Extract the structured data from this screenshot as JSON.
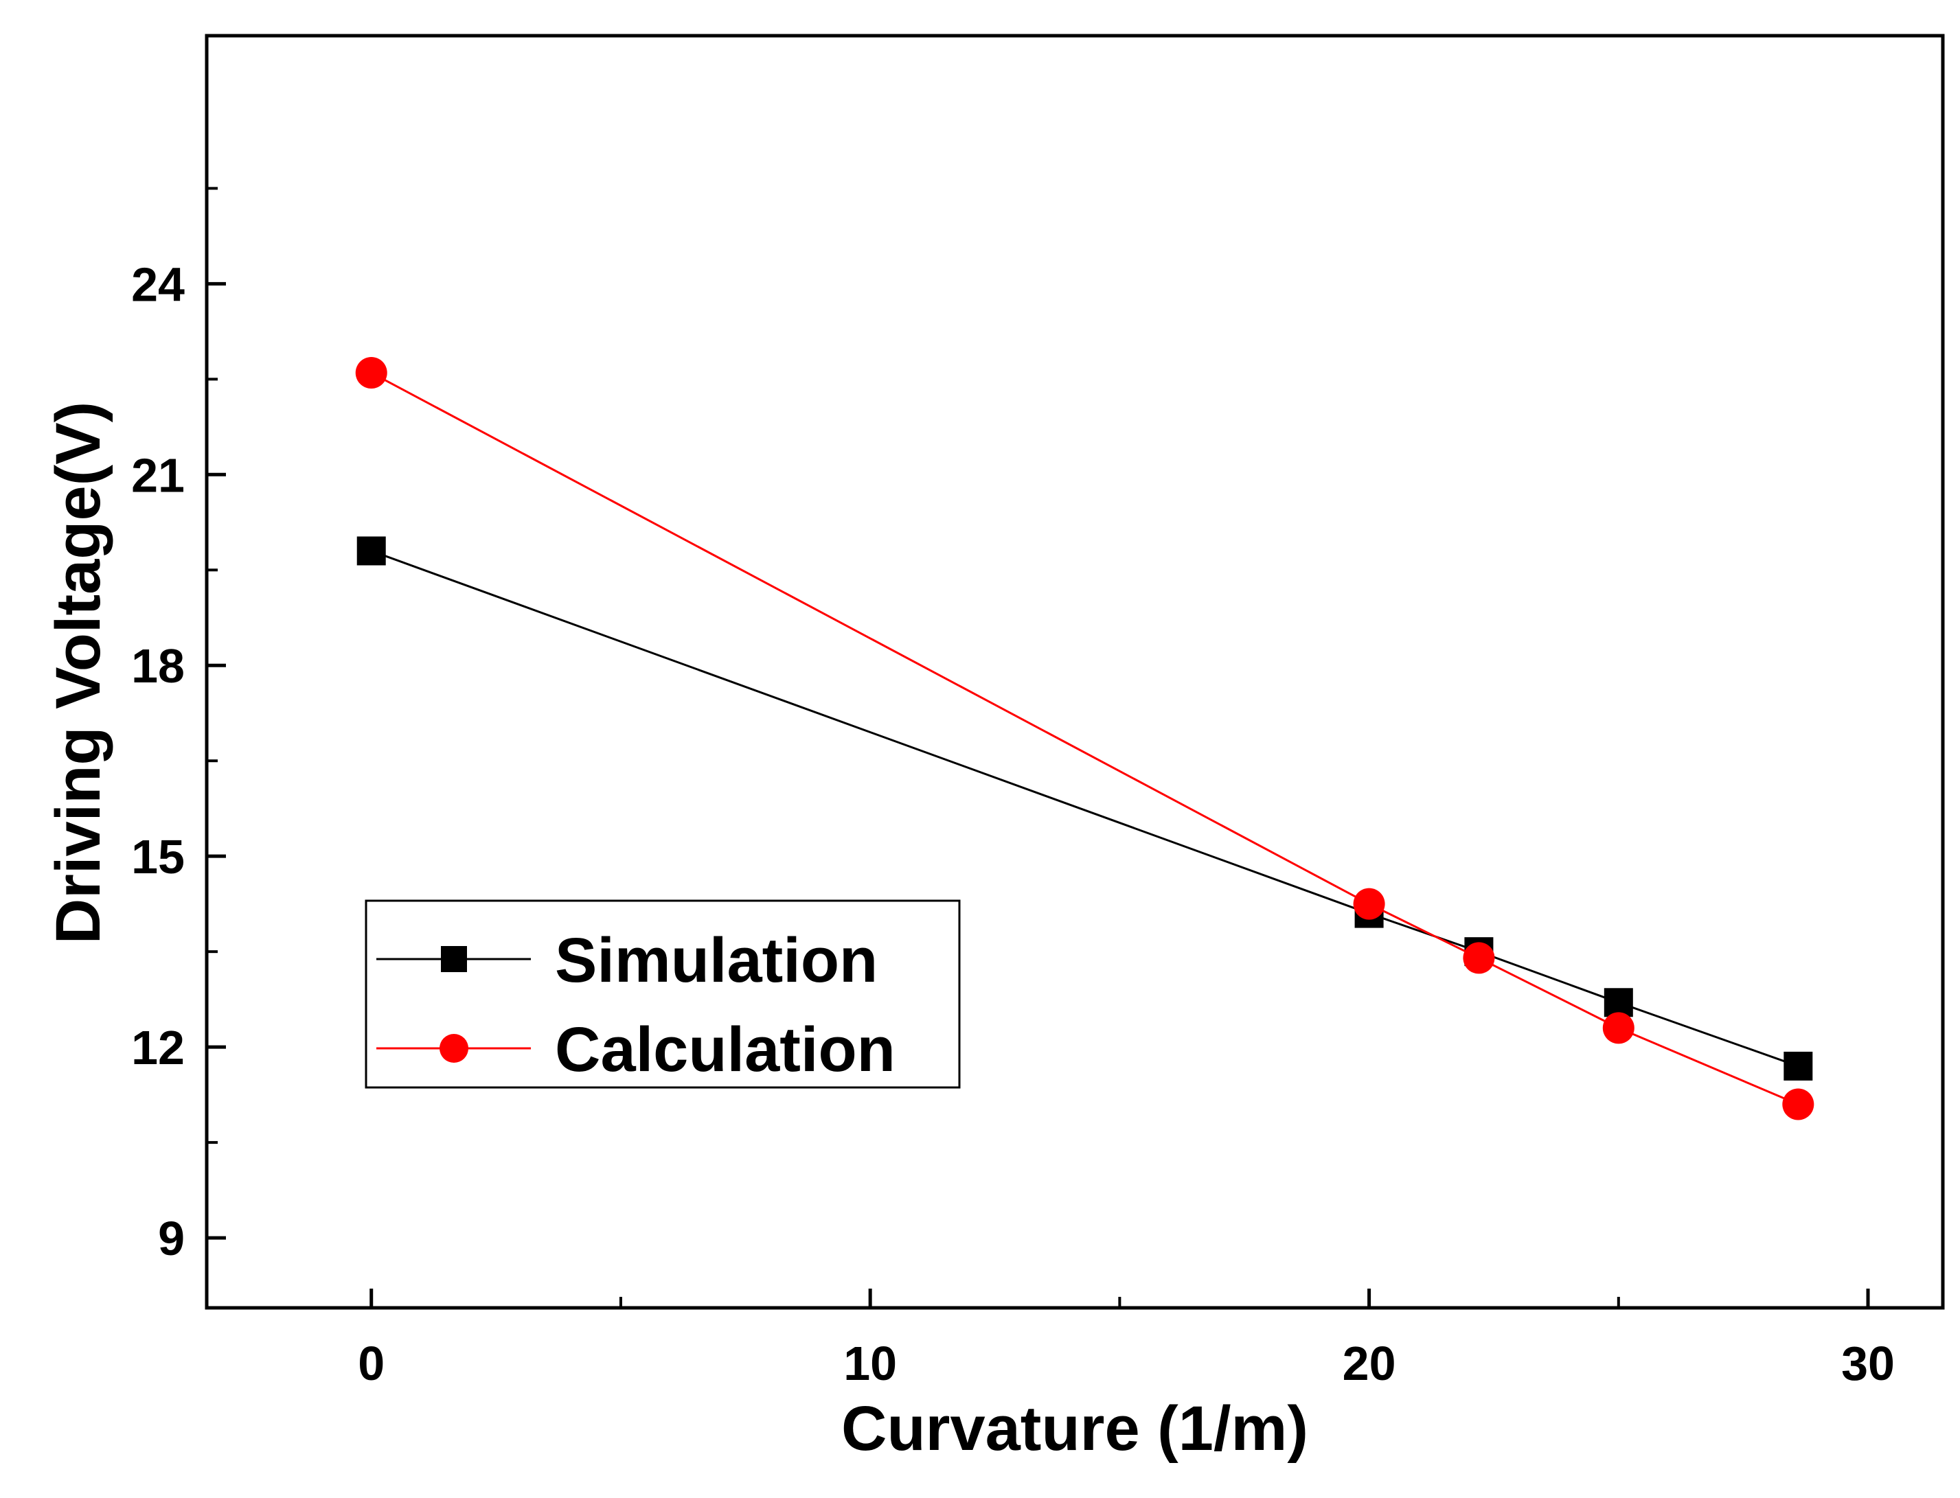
{
  "chart_data": {
    "type": "line",
    "xlabel": "Curvature (1/m)",
    "ylabel": "Driving Voltage(V)",
    "xlim": [
      -3.3,
      31.5
    ],
    "ylim": [
      7.9,
      27.9
    ],
    "xticks": [
      0,
      10,
      20,
      30
    ],
    "xtick_labels": [
      "0",
      "10",
      "20",
      "30"
    ],
    "yticks": [
      9,
      12,
      15,
      18,
      21,
      24
    ],
    "ytick_labels": [
      "9",
      "12",
      "15",
      "18",
      "21",
      "24"
    ],
    "grid": false,
    "legend_position": "lower-left",
    "series": [
      {
        "name": "Simulation",
        "marker": "square",
        "color": "#000000",
        "x": [
          0,
          20,
          22.2,
          25,
          28.6
        ],
        "y": [
          19.8,
          14.1,
          13.5,
          12.7,
          11.7
        ]
      },
      {
        "name": "Calculation",
        "marker": "circle",
        "color": "#ff0000",
        "x": [
          0,
          20,
          22.2,
          25,
          28.6
        ],
        "y": [
          22.6,
          14.25,
          13.4,
          12.3,
          11.1
        ]
      }
    ]
  }
}
